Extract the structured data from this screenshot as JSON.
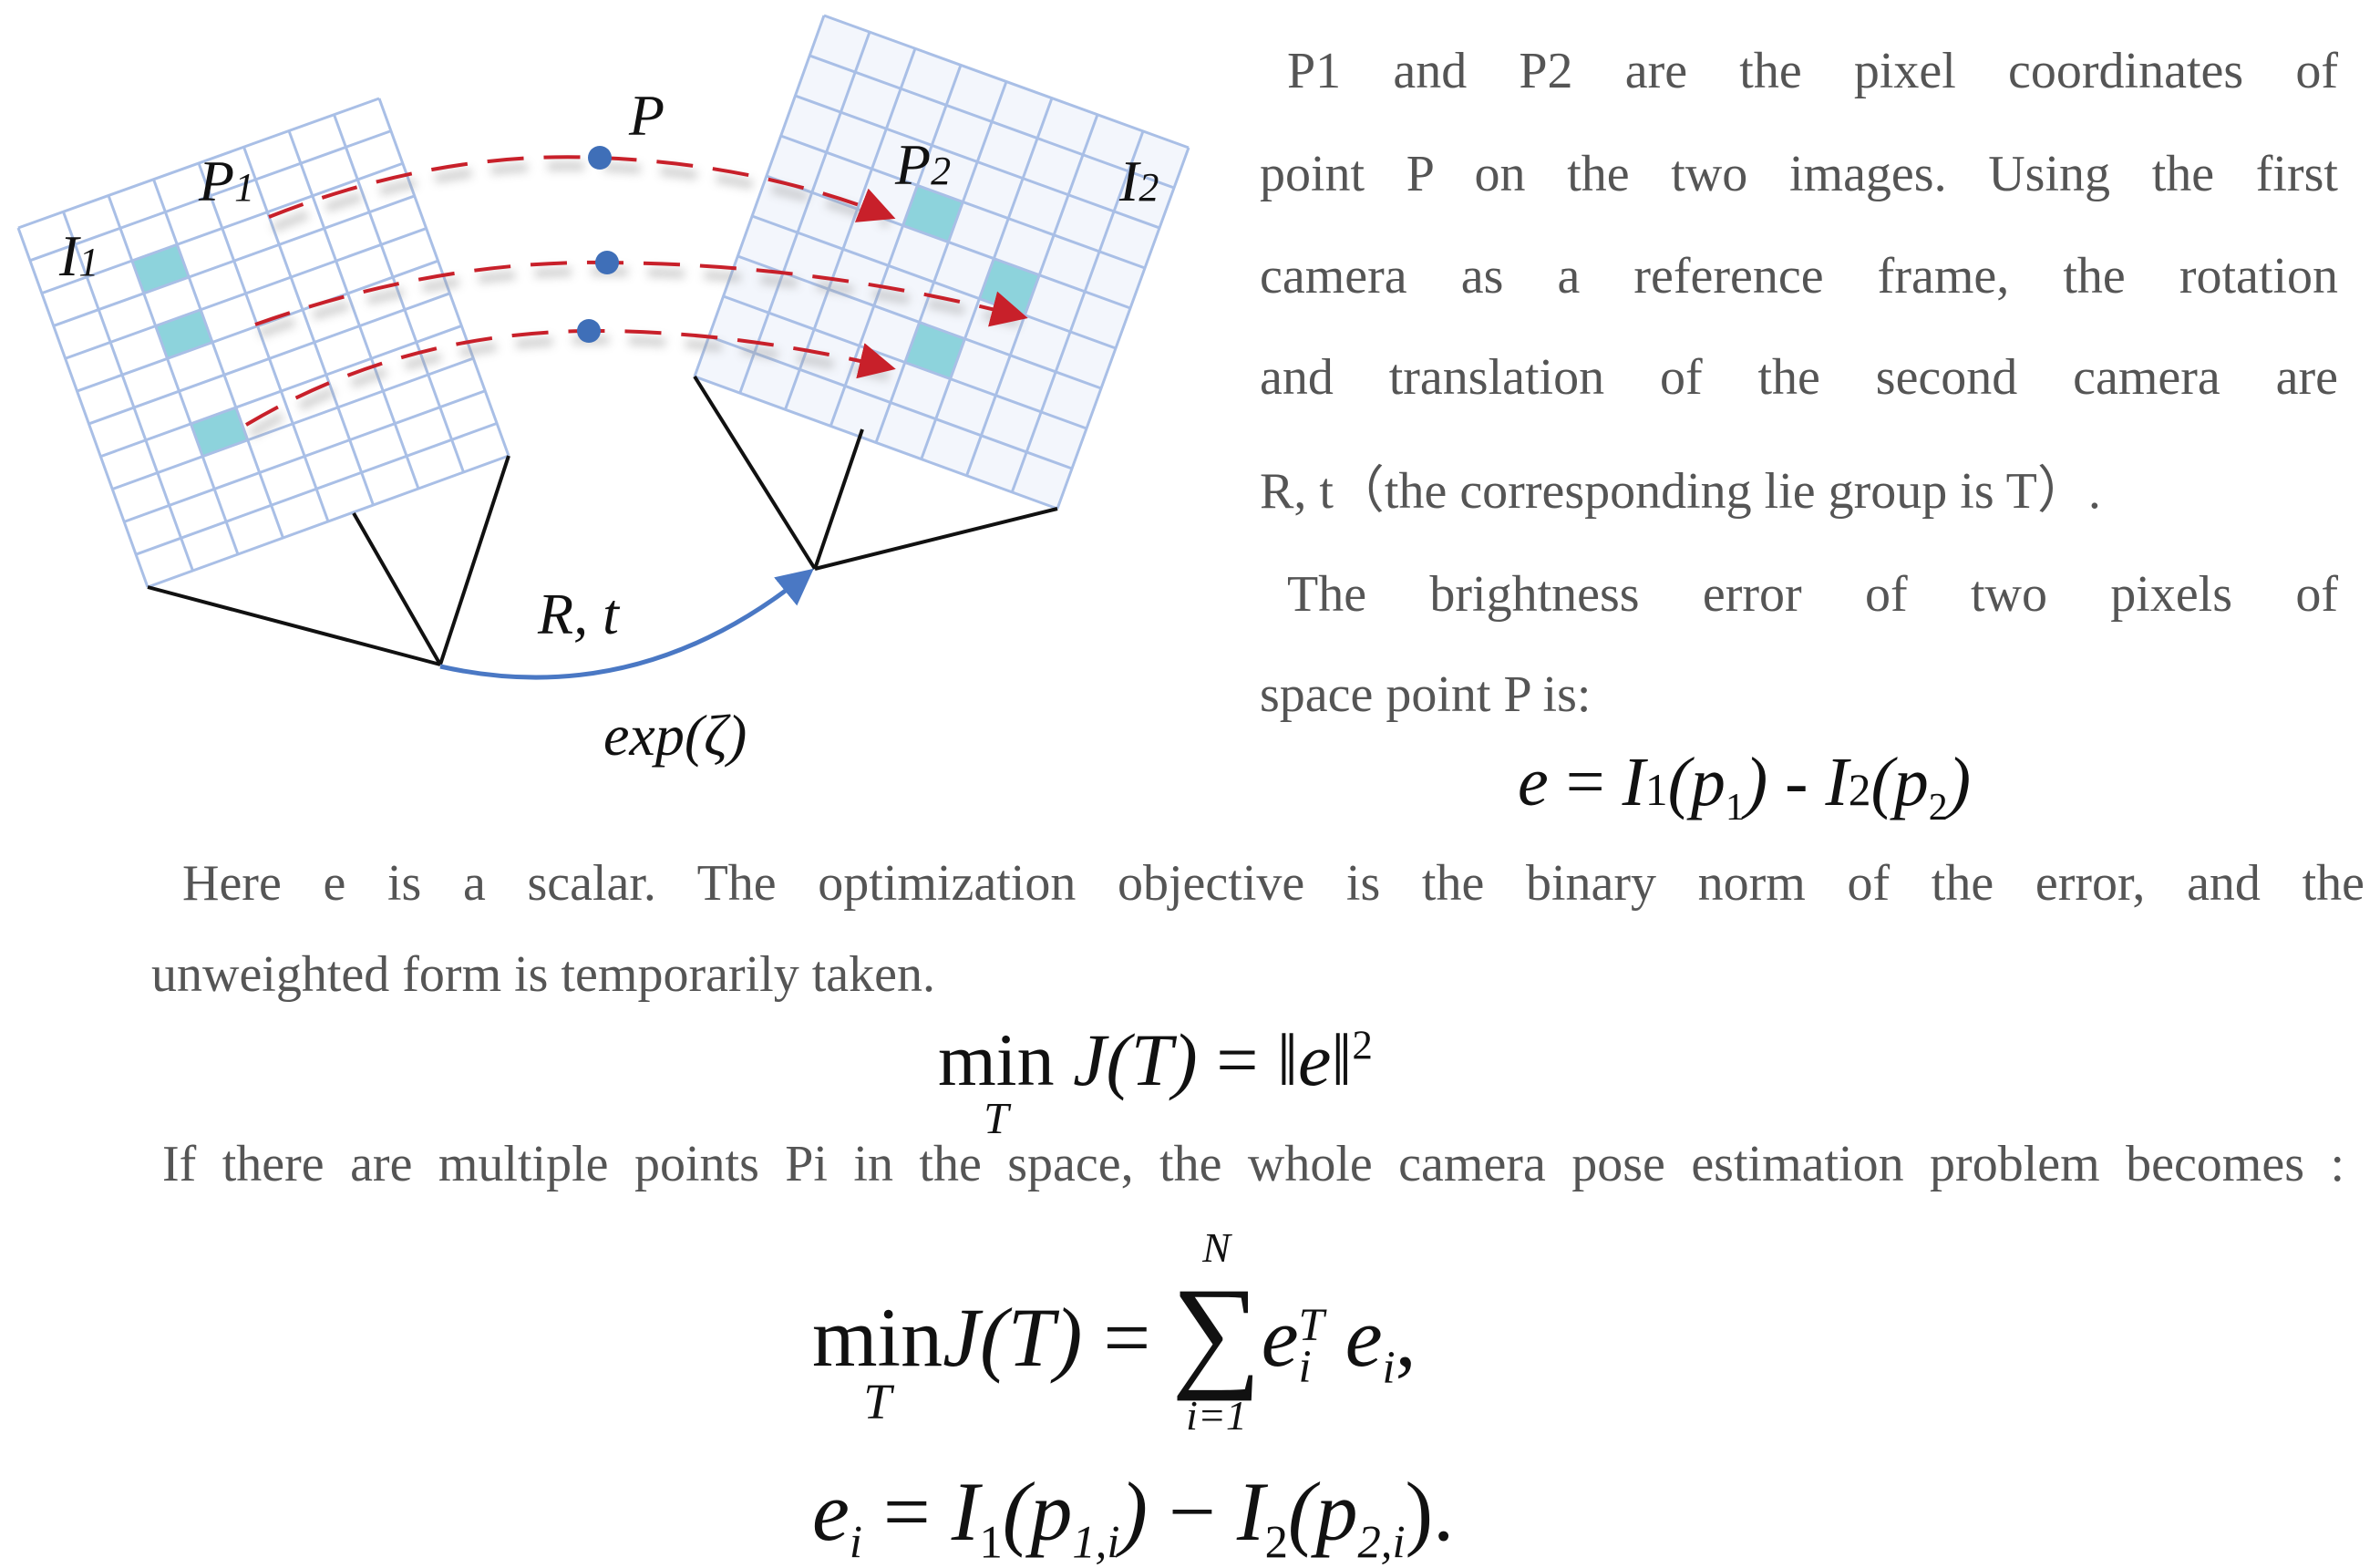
{
  "diagram": {
    "labels": {
      "P": "P",
      "P1": "P",
      "P1_sub": "1",
      "I1": "I",
      "I1_sub": "1",
      "P2": "P",
      "P2_sub": "2",
      "I2": "I",
      "I2_sub": "2",
      "Rt": "R, t",
      "exp": "exp(ζ)"
    },
    "colors": {
      "grid": "#a9bfe6",
      "pixel": "#8dd3dc",
      "ray": "#c8202a",
      "point": "#3f6fb8",
      "motion_arc": "#4a78c4",
      "frustum": "#111111"
    }
  },
  "text": {
    "right_lines": [
      "P1 and P2 are the pixel coordinates of",
      "point P on the two images. Using the first",
      "camera as a reference frame, the rotation",
      "and translation of the second camera are",
      "R, t（the corresponding lie group is T）.",
      "The brightness error of two pixels of",
      "space point P is:"
    ],
    "para2_line1": "Here e is a scalar. The optimization objective is the binary norm of the error, and the",
    "para2_line2": "unweighted form is temporarily taken.",
    "para3_line1": "If there are multiple points Pi in the space, the whole camera pose estimation problem becomes :"
  },
  "equations": {
    "eq1": {
      "e": "e",
      "eq": " = ",
      "I1": "I",
      "one": "1",
      "p1": "(p",
      "p1sub": "1",
      "close1": ")",
      "minus": " - ",
      "I2": "I",
      "two": "2",
      "p2": "(p",
      "p2sub": "2",
      "close2": ")"
    },
    "eq2": {
      "min": "min",
      "under": "T",
      "J": "J",
      "T": "(T)",
      "eq": " = ",
      "norm": "‖e‖",
      "sq": "2"
    },
    "eq3": {
      "min": "min",
      "under": "T",
      "J": "J",
      "T": "(T)",
      "eq": " = ",
      "sum": "∑",
      "upper": "N",
      "lower": "i=1",
      "e": "e",
      "sup": "T",
      "sub": "i",
      "e2": " e",
      "sub2": "i",
      "comma": ","
    },
    "eq4": {
      "e": "e",
      "sub": "i",
      "eq": " = ",
      "I1": "I",
      "one": "1",
      "p1": "(p",
      "p1sub": "1,i",
      "close1": ")",
      "minus": " − ",
      "I2": "I",
      "two": "2",
      "p2": "(p",
      "p2sub": "2,i",
      "close2": ")."
    }
  }
}
